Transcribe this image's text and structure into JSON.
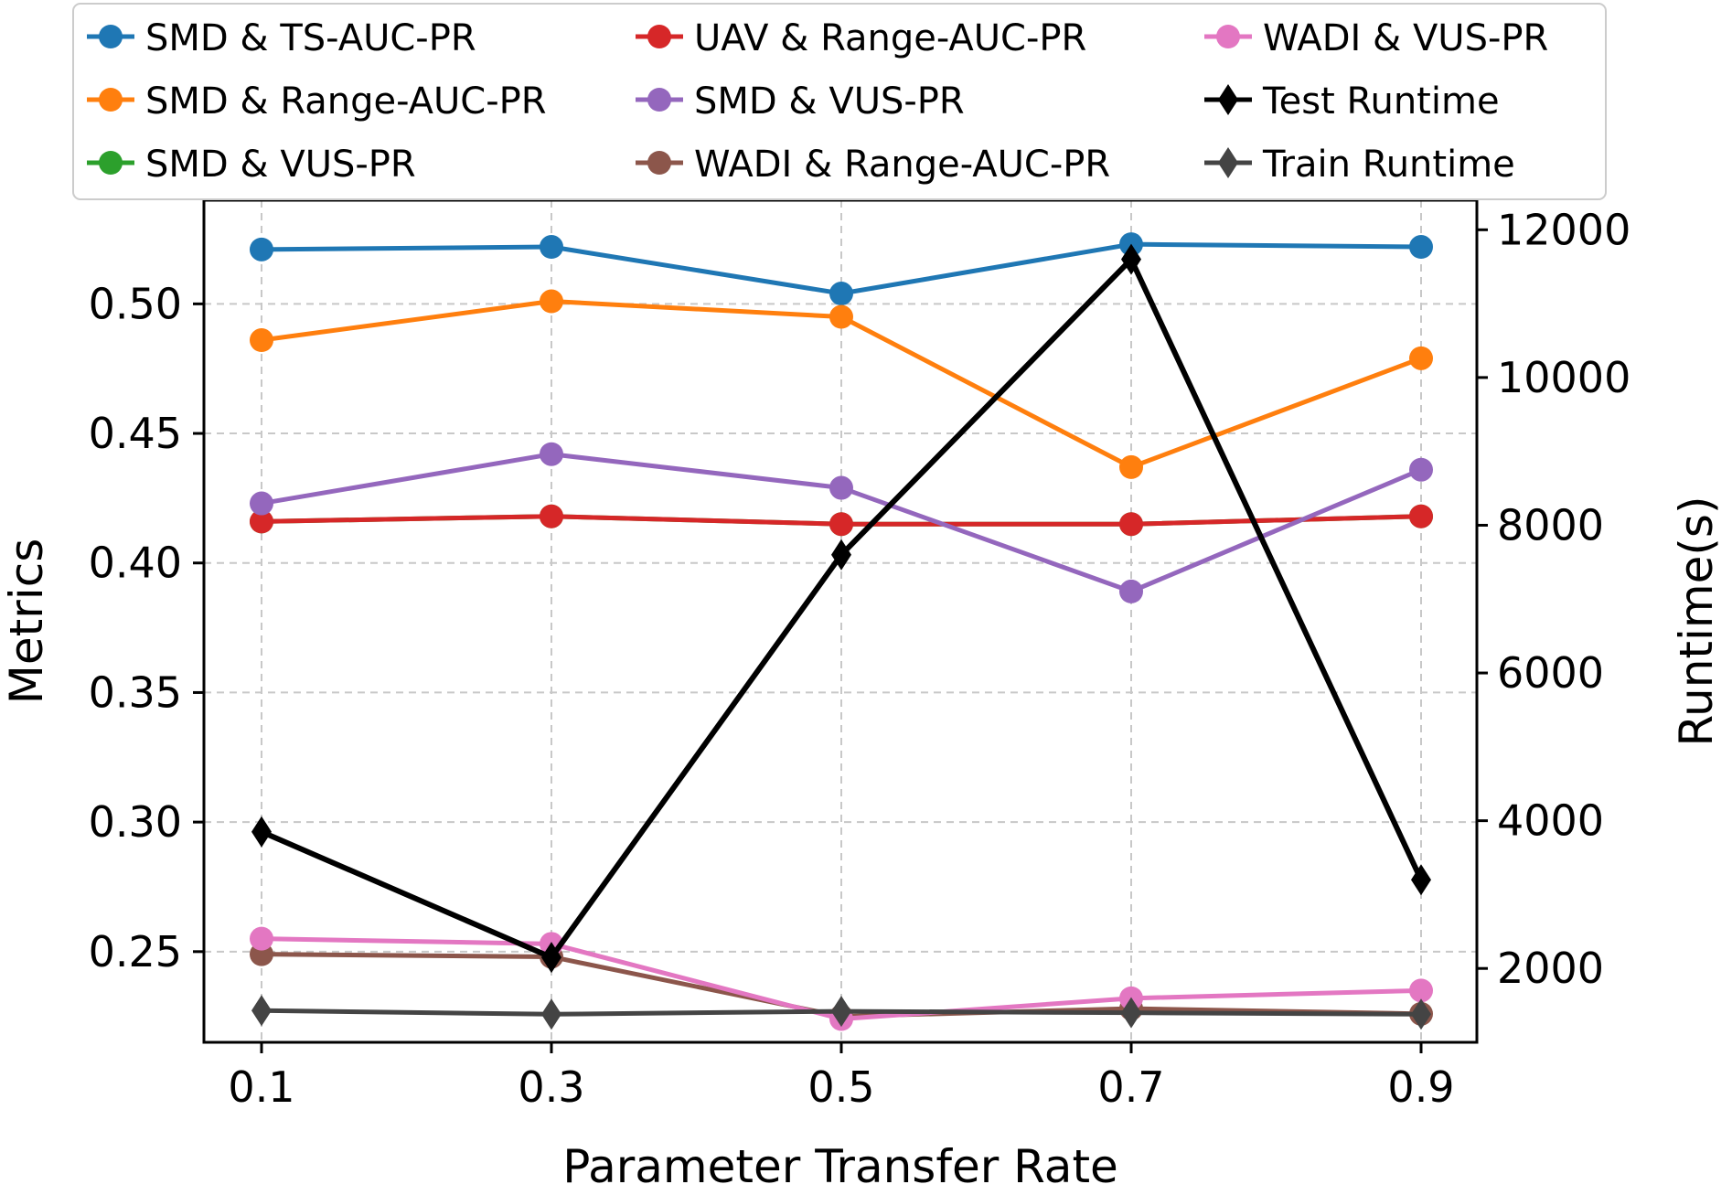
{
  "chart_data": {
    "type": "line",
    "xlabel": "Parameter Transfer Rate",
    "ylabel": "Metrics",
    "ylabel_right": "Runtime(s)",
    "x": [
      0.1,
      0.3,
      0.5,
      0.7,
      0.9
    ],
    "x_tick_labels": [
      "0.1",
      "0.3",
      "0.5",
      "0.7",
      "0.9"
    ],
    "ylim": [
      0.215,
      0.54
    ],
    "y_ticks": [
      0.25,
      0.3,
      0.35,
      0.4,
      0.45,
      0.5
    ],
    "y_tick_labels": [
      "0.25",
      "0.30",
      "0.35",
      "0.40",
      "0.45",
      "0.50"
    ],
    "ylim_right": [
      1000,
      12400
    ],
    "y_ticks_right": [
      2000,
      4000,
      6000,
      8000,
      10000,
      12000
    ],
    "y_tick_labels_right": [
      "2000",
      "4000",
      "6000",
      "8000",
      "10000",
      "12000"
    ],
    "grid": true,
    "legend_position": "top",
    "series": [
      {
        "name": "SMD & TS-AUC-PR",
        "color": "#1f77b4",
        "marker": "circle",
        "axis": "left",
        "values": [
          0.521,
          0.522,
          0.504,
          0.523,
          0.522
        ]
      },
      {
        "name": "SMD & Range-AUC-PR",
        "color": "#ff7f0e",
        "marker": "circle",
        "axis": "left",
        "values": [
          0.486,
          0.501,
          0.495,
          0.437,
          0.479
        ]
      },
      {
        "name": "SMD & VUS-PR",
        "color": "#2ca02c",
        "marker": "circle",
        "axis": "left",
        "values": [
          0.416,
          0.418,
          0.415,
          0.415,
          0.418
        ]
      },
      {
        "name": "UAV & Range-AUC-PR",
        "color": "#d62728",
        "marker": "circle",
        "axis": "left",
        "values": [
          0.416,
          0.418,
          0.415,
          0.415,
          0.418
        ]
      },
      {
        "name": "SMD & VUS-PR",
        "color": "#9467bd",
        "marker": "circle",
        "axis": "left",
        "values": [
          0.423,
          0.442,
          0.429,
          0.389,
          0.436
        ]
      },
      {
        "name": "WADI & Range-AUC-PR",
        "color": "#8c564b",
        "marker": "circle",
        "axis": "left",
        "values": [
          0.249,
          0.248,
          0.225,
          0.228,
          0.226
        ]
      },
      {
        "name": "WADI & VUS-PR",
        "color": "#e377c2",
        "marker": "circle",
        "axis": "left",
        "values": [
          0.255,
          0.253,
          0.224,
          0.232,
          0.235
        ]
      },
      {
        "name": "Test Runtime",
        "color": "#000000",
        "marker": "diamond",
        "axis": "right",
        "values": [
          3850,
          2150,
          7600,
          11600,
          3200
        ]
      },
      {
        "name": "Train Runtime",
        "color": "#444444",
        "marker": "diamond",
        "axis": "right",
        "values": [
          1430,
          1380,
          1420,
          1400,
          1380
        ]
      }
    ]
  }
}
